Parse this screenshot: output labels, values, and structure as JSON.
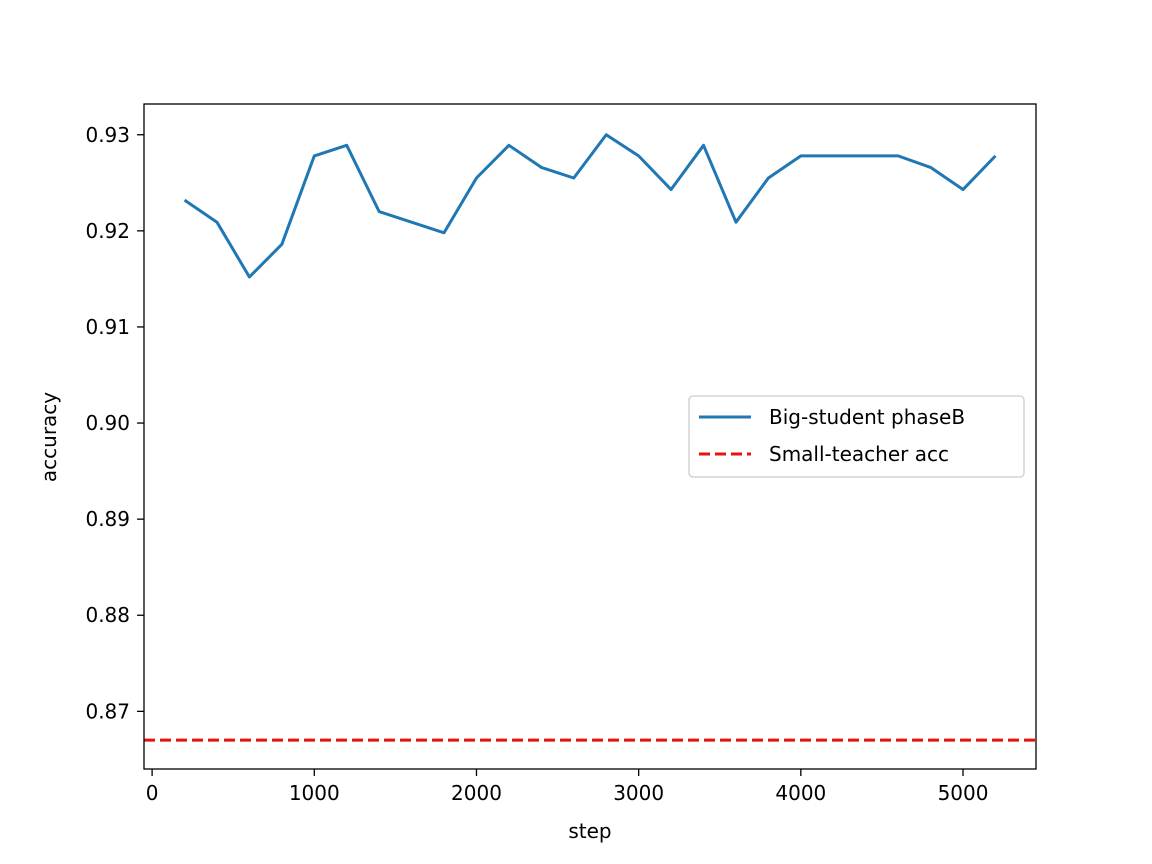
{
  "chart_data": {
    "type": "line",
    "title": "",
    "xlabel": "step",
    "ylabel": "accuracy",
    "xlim": [
      -50,
      5450
    ],
    "ylim": [
      0.864,
      0.9332
    ],
    "xticks": [
      0,
      1000,
      2000,
      3000,
      4000,
      5000
    ],
    "yticks": [
      0.87,
      0.88,
      0.89,
      0.9,
      0.91,
      0.92,
      0.93
    ],
    "ytick_labels": [
      "0.87",
      "0.88",
      "0.89",
      "0.90",
      "0.91",
      "0.92",
      "0.93"
    ],
    "grid": false,
    "legend_position": "center-right",
    "series": [
      {
        "name": "Big-student phaseB",
        "color": "#1f77b4",
        "style": "solid",
        "x": [
          200,
          400,
          600,
          800,
          1000,
          1200,
          1400,
          1600,
          1800,
          2000,
          2200,
          2400,
          2600,
          2800,
          3000,
          3200,
          3400,
          3600,
          3800,
          4000,
          4200,
          4400,
          4600,
          4800,
          5000,
          5200
        ],
        "y": [
          0.9232,
          0.9209,
          0.9152,
          0.9186,
          0.9278,
          0.9289,
          0.922,
          0.9209,
          0.9198,
          0.9255,
          0.9289,
          0.9266,
          0.9255,
          0.93,
          0.9278,
          0.9243,
          0.9289,
          0.9209,
          0.9255,
          0.9278,
          0.9278,
          0.9278,
          0.9278,
          0.9266,
          0.9243,
          0.9278
        ]
      },
      {
        "name": "Small-teacher acc",
        "color": "#e8120c",
        "style": "dashed",
        "hline": 0.867
      }
    ]
  }
}
